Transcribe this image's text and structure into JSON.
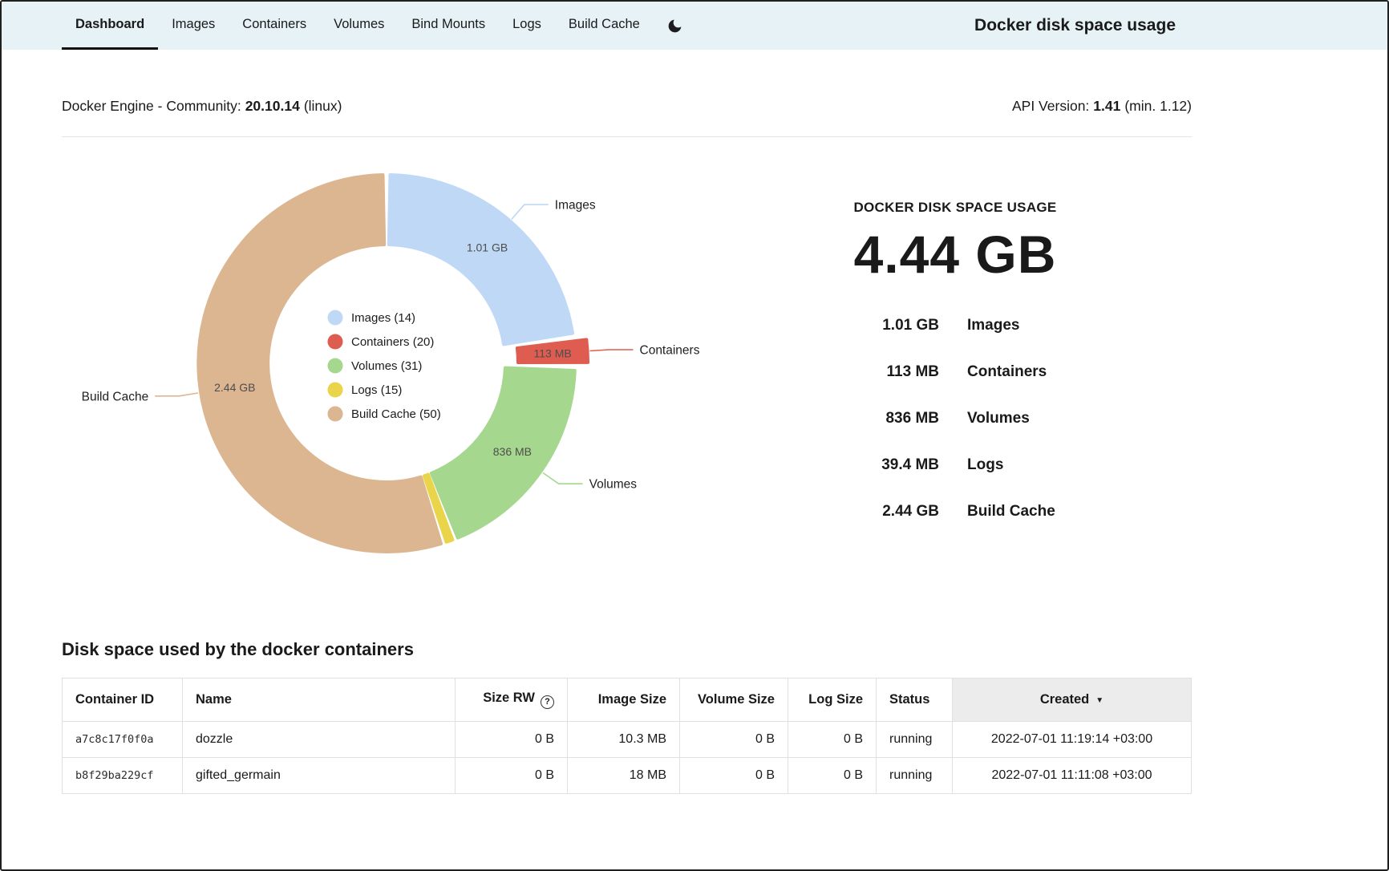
{
  "header": {
    "tabs": [
      {
        "label": "Dashboard",
        "active": true
      },
      {
        "label": "Images",
        "active": false
      },
      {
        "label": "Containers",
        "active": false
      },
      {
        "label": "Volumes",
        "active": false
      },
      {
        "label": "Bind Mounts",
        "active": false
      },
      {
        "label": "Logs",
        "active": false
      },
      {
        "label": "Build Cache",
        "active": false
      }
    ],
    "dark_mode_icon": "moon",
    "title": "Docker disk space usage"
  },
  "engine_info": {
    "label": "Docker Engine - Community:",
    "version": "20.10.14",
    "platform": "(linux)",
    "api_label": "API Version:",
    "api_version": "1.41",
    "api_min": "(min. 1.12)"
  },
  "chart_data": {
    "type": "pie",
    "title": "DOCKER DISK SPACE USAGE",
    "total_label": "4.44 GB",
    "legend_position": "center",
    "segments": [
      {
        "name": "Images",
        "count": 14,
        "size_label": "1.01 GB",
        "value_gb": 1.01,
        "color": "#bed8f6",
        "callout": true,
        "show_size": true,
        "exploded": false
      },
      {
        "name": "Containers",
        "count": 20,
        "size_label": "113 MB",
        "value_gb": 0.113,
        "color": "#df5c50",
        "callout": true,
        "show_size": true,
        "exploded": true
      },
      {
        "name": "Volumes",
        "count": 31,
        "size_label": "836 MB",
        "value_gb": 0.836,
        "color": "#a6d78e",
        "callout": true,
        "show_size": true,
        "exploded": false
      },
      {
        "name": "Logs",
        "count": 15,
        "size_label": "39.4 MB",
        "value_gb": 0.0394,
        "color": "#e9d44a",
        "callout": false,
        "show_size": false,
        "exploded": false
      },
      {
        "name": "Build Cache",
        "count": 50,
        "size_label": "2.44 GB",
        "value_gb": 2.44,
        "color": "#dcb691",
        "callout": true,
        "show_size": true,
        "exploded": false
      }
    ]
  },
  "summary": {
    "heading": "DOCKER DISK SPACE USAGE",
    "total": "4.44 GB",
    "rows": [
      {
        "value": "1.01 GB",
        "label": "Images"
      },
      {
        "value": "113 MB",
        "label": "Containers"
      },
      {
        "value": "836 MB",
        "label": "Volumes"
      },
      {
        "value": "39.4 MB",
        "label": "Logs"
      },
      {
        "value": "2.44 GB",
        "label": "Build Cache"
      }
    ]
  },
  "containers": {
    "heading": "Disk space used by the docker containers",
    "columns": [
      {
        "label": "Container ID"
      },
      {
        "label": "Name"
      },
      {
        "label": "Size RW",
        "icon": "help"
      },
      {
        "label": "Image Size"
      },
      {
        "label": "Volume Size"
      },
      {
        "label": "Log Size"
      },
      {
        "label": "Status"
      },
      {
        "label": "Created",
        "icon": "sort-desc",
        "sorted": true
      }
    ],
    "rows": [
      {
        "id": "a7c8c17f0f0a",
        "name": "dozzle",
        "size_rw": "0 B",
        "image_size": "10.3 MB",
        "volume_size": "0 B",
        "log_size": "0 B",
        "status": "running",
        "created": "2022-07-01  11:19:14 +03:00"
      },
      {
        "id": "b8f29ba229cf",
        "name": "gifted_germain",
        "size_rw": "0 B",
        "image_size": "18 MB",
        "volume_size": "0 B",
        "log_size": "0 B",
        "status": "running",
        "created": "2022-07-01  11:11:08 +03:00"
      }
    ]
  },
  "icons": {
    "help": "?",
    "sort_desc": "▼"
  }
}
